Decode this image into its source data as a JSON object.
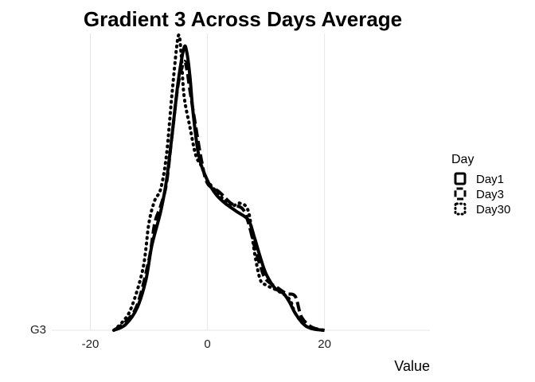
{
  "chart_data": {
    "type": "area",
    "title": "Gradient 3 Across Days Average",
    "xlabel": "Value",
    "ylabel": "",
    "y_category": "G3",
    "xlim": [
      -30,
      38
    ],
    "ylim": [
      0,
      1
    ],
    "x_ticks": [
      -20,
      0,
      20
    ],
    "x_tick_labels": [
      "-20",
      "0",
      "20"
    ],
    "grid": "vertical major lines only",
    "legend": {
      "title": "Day",
      "placement": "right"
    },
    "series": [
      {
        "name": "Day1",
        "linetype": "solid",
        "x": [
          -16,
          -14,
          -12,
          -10.5,
          -9.5,
          -8,
          -7,
          -6,
          -5,
          -4,
          -3.5,
          -3,
          -2.5,
          -1.5,
          0,
          1.5,
          3,
          5,
          7,
          8,
          9,
          10,
          11.5,
          13,
          14,
          15,
          16.5,
          18,
          20
        ],
        "y": [
          0,
          0.02,
          0.08,
          0.18,
          0.3,
          0.42,
          0.53,
          0.7,
          0.88,
          1.0,
          0.98,
          0.9,
          0.78,
          0.62,
          0.53,
          0.48,
          0.45,
          0.42,
          0.39,
          0.33,
          0.26,
          0.2,
          0.15,
          0.13,
          0.1,
          0.06,
          0.02,
          0.005,
          0
        ]
      },
      {
        "name": "Day3",
        "linetype": "dashed",
        "x": [
          -16,
          -14,
          -12,
          -10,
          -9,
          -8,
          -7,
          -6,
          -5,
          -4,
          -3.5,
          -3,
          -2,
          -1,
          0,
          2,
          4,
          6,
          7,
          8,
          9,
          10,
          12,
          13.5,
          15,
          16,
          17.5,
          19,
          20
        ],
        "y": [
          0,
          0.03,
          0.09,
          0.25,
          0.38,
          0.44,
          0.52,
          0.7,
          0.87,
          0.95,
          0.92,
          0.85,
          0.72,
          0.6,
          0.52,
          0.49,
          0.45,
          0.43,
          0.38,
          0.3,
          0.23,
          0.18,
          0.15,
          0.13,
          0.12,
          0.05,
          0.015,
          0.003,
          0
        ]
      },
      {
        "name": "Day30",
        "linetype": "dotted",
        "x": [
          -16,
          -14.5,
          -13,
          -11,
          -10,
          -9,
          -8,
          -7,
          -6,
          -5,
          -4.5,
          -4,
          -3,
          -2,
          -1,
          0,
          2,
          4,
          5.5,
          7,
          8,
          9,
          10,
          12,
          14,
          15,
          16.5,
          18,
          20
        ],
        "y": [
          0,
          0.03,
          0.08,
          0.22,
          0.38,
          0.46,
          0.5,
          0.62,
          0.85,
          1.04,
          0.98,
          0.83,
          0.72,
          0.62,
          0.58,
          0.53,
          0.48,
          0.44,
          0.45,
          0.42,
          0.28,
          0.18,
          0.16,
          0.14,
          0.11,
          0.06,
          0.02,
          0.005,
          0
        ]
      }
    ]
  }
}
